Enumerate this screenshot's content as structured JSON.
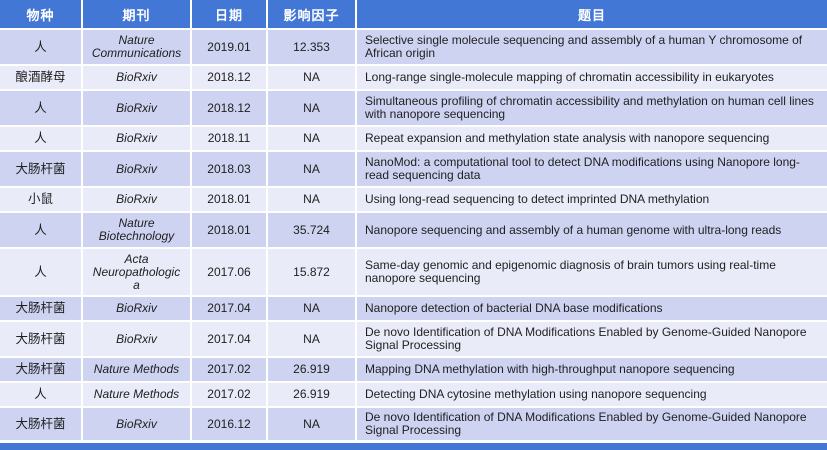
{
  "columns": [
    {
      "key": "species",
      "label": "物种"
    },
    {
      "key": "journal",
      "label": "期刊"
    },
    {
      "key": "date",
      "label": "日期"
    },
    {
      "key": "impact_factor",
      "label": "影响因子"
    },
    {
      "key": "title",
      "label": "题目"
    }
  ],
  "rows": [
    {
      "species": "人",
      "journal": "Nature Communications",
      "date": "2019.01",
      "impact_factor": "12.353",
      "title": "Selective single molecule sequencing and assembly of a human Y chromosome of African origin"
    },
    {
      "species": "酿酒酵母",
      "journal": "BioRxiv",
      "date": "2018.12",
      "impact_factor": "NA",
      "title": "Long-range single-molecule mapping of chromatin accessibility in eukaryotes"
    },
    {
      "species": "人",
      "journal": "BioRxiv",
      "date": "2018.12",
      "impact_factor": "NA",
      "title": "Simultaneous profiling of chromatin accessibility and methylation on human cell lines with nanopore sequencing"
    },
    {
      "species": "人",
      "journal": "BioRxiv",
      "date": "2018.11",
      "impact_factor": "NA",
      "title": "Repeat expansion and methylation state analysis with nanopore sequencing"
    },
    {
      "species": "大肠杆菌",
      "journal": "BioRxiv",
      "date": "2018.03",
      "impact_factor": "NA",
      "title": "NanoMod: a computational tool to detect DNA modifications using Nanopore long-read sequencing data"
    },
    {
      "species": "小鼠",
      "journal": "BioRxiv",
      "date": "2018.01",
      "impact_factor": "NA",
      "title": "Using long-read sequencing to detect imprinted DNA methylation"
    },
    {
      "species": "人",
      "journal": "Nature Biotechnology",
      "date": "2018.01",
      "impact_factor": "35.724",
      "title": "Nanopore sequencing and assembly of a human genome with ultra-long reads"
    },
    {
      "species": "人",
      "journal": "Acta Neuropathologica",
      "date": "2017.06",
      "impact_factor": "15.872",
      "title": "Same-day genomic and epigenomic diagnosis of brain tumors using real-time nanopore sequencing"
    },
    {
      "species": "大肠杆菌",
      "journal": "BioRxiv",
      "date": "2017.04",
      "impact_factor": "NA",
      "title": "Nanopore detection of bacterial DNA base modifications"
    },
    {
      "species": "大肠杆菌",
      "journal": "BioRxiv",
      "date": "2017.04",
      "impact_factor": "NA",
      "title": "De novo Identification of DNA Modifications Enabled by Genome-Guided Nanopore Signal Processing"
    },
    {
      "species": "大肠杆菌",
      "journal": "Nature Methods",
      "date": "2017.02",
      "impact_factor": "26.919",
      "title": "Mapping DNA methylation with high-throughput nanopore sequencing"
    },
    {
      "species": "人",
      "journal": "Nature Methods",
      "date": "2017.02",
      "impact_factor": "26.919",
      "title": "Detecting DNA cytosine methylation using nanopore sequencing"
    },
    {
      "species": "大肠杆菌",
      "journal": "BioRxiv",
      "date": "2016.12",
      "impact_factor": "NA",
      "title": "De novo Identification of DNA Modifications Enabled by Genome-Guided Nanopore Signal Processing"
    }
  ],
  "colors": {
    "header_bg": "#4377D6",
    "header_text": "#FFFFFF",
    "row_band_dark": "#CDD3F0",
    "row_band_light": "#E9EBF8",
    "body_text": "#1F1F1F",
    "grid_line": "#FFFFFF"
  }
}
